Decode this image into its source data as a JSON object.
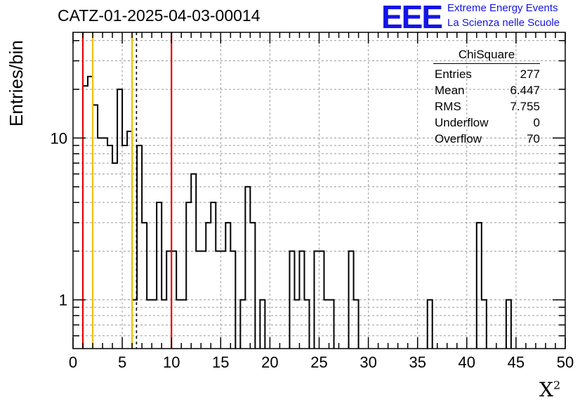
{
  "header": {
    "title": "CATZ-01-2025-04-03-00014",
    "logo_text": "EEE",
    "logo_line1": "Extreme Energy Events",
    "logo_line2": "La Scienza nelle Scuole",
    "brand_color": "#1414e6"
  },
  "stats_box": {
    "name": "ChiSquare",
    "rows": [
      {
        "label": "Entries",
        "value": "277"
      },
      {
        "label": "Mean",
        "value": "6.447"
      },
      {
        "label": "RMS",
        "value": "7.755"
      },
      {
        "label": "Underflow",
        "value": "0"
      },
      {
        "label": "Overflow",
        "value": "70"
      }
    ]
  },
  "chart_data": {
    "type": "histogram",
    "ylabel": "Entries/bin",
    "xlabel": "X",
    "xlabel_superscript": "2",
    "xlim": [
      0,
      50
    ],
    "ylim": [
      0.5,
      45
    ],
    "yscale": "log",
    "grid": true,
    "bin_width": 0.5,
    "x_ticks": [
      0,
      5,
      10,
      15,
      20,
      25,
      30,
      35,
      40,
      45,
      50
    ],
    "y_ticks": [
      1,
      10
    ],
    "counts": [
      0,
      0,
      21,
      24,
      16,
      10,
      10,
      9,
      7,
      20,
      9,
      11,
      1,
      9,
      3,
      1,
      1,
      4,
      1,
      2,
      2,
      1,
      1,
      4,
      6,
      2,
      2,
      3,
      4,
      2,
      2,
      3,
      2,
      0,
      1,
      5,
      3,
      0,
      1,
      0,
      0,
      0,
      0,
      0,
      2,
      1,
      2,
      1,
      0,
      2,
      2,
      1,
      1,
      0,
      0,
      0,
      2,
      1,
      0,
      0,
      0,
      0,
      0,
      0,
      0,
      0,
      0,
      0,
      0,
      0,
      0,
      0,
      1,
      0,
      0,
      0,
      0,
      0,
      0,
      0,
      0,
      0,
      3,
      1,
      0,
      0,
      0,
      0,
      1,
      0,
      0,
      0,
      0,
      0,
      0,
      0,
      0,
      0,
      0,
      0
    ],
    "vertical_lines": [
      {
        "x": 1.0,
        "color": "#e60000",
        "style": "solid"
      },
      {
        "x": 2.0,
        "color": "#f0c000",
        "style": "solid"
      },
      {
        "x": 6.0,
        "color": "#f0c000",
        "style": "solid"
      },
      {
        "x": 6.447,
        "color": "#000000",
        "style": "dashed"
      },
      {
        "x": 10.0,
        "color": "#e60000",
        "style": "solid"
      }
    ]
  }
}
